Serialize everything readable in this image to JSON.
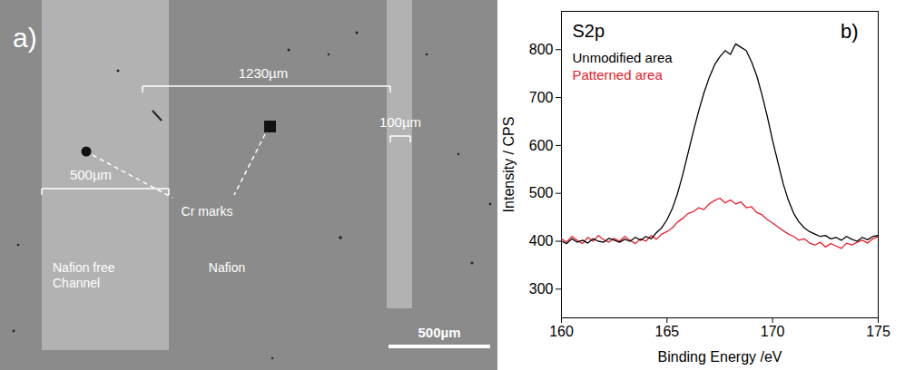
{
  "panel_a": {
    "panel_label": "a)",
    "spacing_label": "1230µm",
    "narrow_channel_width": "100µm",
    "wide_channel_width": "500µm",
    "marker_label": "Cr marks",
    "channel_label": "Nafion free Channel",
    "film_label": "Nafion",
    "scale_bar": "500µm"
  },
  "chart_data": {
    "type": "line",
    "title": "S2p",
    "panel_label": "b)",
    "x_label": "Binding Energy /eV",
    "y_label": "Intensity / CPS",
    "xlim": [
      160,
      175
    ],
    "xticks": [
      160,
      165,
      170,
      175
    ],
    "ylim": [
      240,
      880
    ],
    "yticks": [
      300,
      400,
      500,
      600,
      700,
      800
    ],
    "legend": "top-left",
    "x": [
      160,
      160.25,
      160.5,
      160.75,
      161,
      161.25,
      161.5,
      161.75,
      162,
      162.25,
      162.5,
      162.75,
      163,
      163.25,
      163.5,
      163.75,
      164,
      164.25,
      164.5,
      164.75,
      165,
      165.25,
      165.5,
      165.75,
      166,
      166.25,
      166.5,
      166.75,
      167,
      167.25,
      167.5,
      167.75,
      168,
      168.25,
      168.5,
      168.75,
      169,
      169.25,
      169.5,
      169.75,
      170,
      170.25,
      170.5,
      170.75,
      171,
      171.25,
      171.5,
      171.75,
      172,
      172.25,
      172.5,
      172.75,
      173,
      173.25,
      173.5,
      173.75,
      174,
      174.25,
      174.5,
      174.75,
      175
    ],
    "series": [
      {
        "name": "Patterned area",
        "color": "#e8202a",
        "values": [
          405,
          398,
          410,
          402,
          395,
          408,
          400,
          412,
          403,
          398,
          406,
          400,
          410,
          402,
          395,
          405,
          400,
          412,
          404,
          415,
          420,
          428,
          440,
          448,
          458,
          462,
          470,
          466,
          478,
          485,
          490,
          480,
          486,
          478,
          482,
          470,
          472,
          460,
          455,
          445,
          438,
          430,
          422,
          415,
          410,
          402,
          405,
          396,
          392,
          398,
          388,
          395,
          390,
          385,
          396,
          392,
          398,
          402,
          396,
          405,
          410
        ]
      },
      {
        "name": "Unmodified area",
        "color": "#000000",
        "values": [
          400,
          395,
          405,
          398,
          402,
          396,
          405,
          400,
          398,
          406,
          402,
          398,
          404,
          400,
          408,
          402,
          410,
          405,
          418,
          428,
          445,
          468,
          500,
          540,
          585,
          630,
          672,
          710,
          742,
          768,
          785,
          798,
          790,
          812,
          805,
          798,
          775,
          745,
          705,
          660,
          610,
          565,
          520,
          485,
          458,
          440,
          428,
          420,
          415,
          410,
          412,
          405,
          408,
          402,
          410,
          404,
          400,
          408,
          403,
          410,
          412
        ]
      }
    ]
  }
}
